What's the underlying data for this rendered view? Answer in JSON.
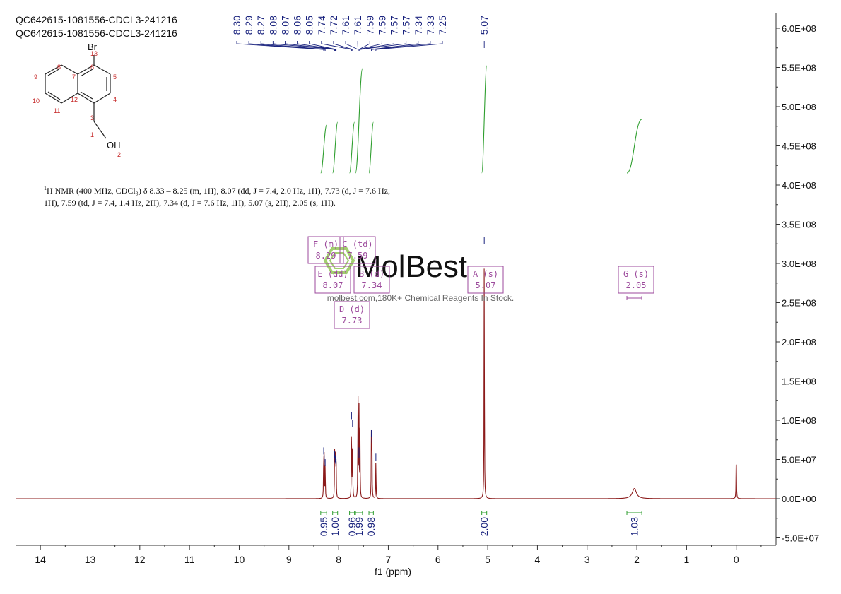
{
  "titles": [
    "QC642615-1081556-CDCL3-241216",
    "QC642615-1081556-CDCL3-241216"
  ],
  "nmr_description": {
    "superscript": "1",
    "line1": "H NMR (400 MHz, CDCl₃) δ 8.33 – 8.25 (m, 1H), 8.07 (dd, J = 7.4, 2.0 Hz, 1H), 7.73 (d, J = 7.6 Hz,",
    "line2": "1H), 7.59 (td, J = 7.4, 1.4 Hz, 2H), 7.34 (d, J = 7.6 Hz, 1H), 5.07 (s, 2H), 2.05 (s, 1H)."
  },
  "watermark": {
    "brand": "MolBest",
    "tagline": "molbest.com,180K+ Chemical Reagents In Stock.",
    "color": "#8bc34a"
  },
  "molecule": {
    "atom_labels": [
      "Br",
      "OH"
    ],
    "numbers": [
      "1",
      "2",
      "3",
      "4",
      "5",
      "6",
      "7",
      "8",
      "9",
      "10",
      "11",
      "12",
      "13"
    ]
  },
  "colors": {
    "spectrum": "#8b1a1a",
    "peak_labels": "#1a237e",
    "integral_curve": "#2e9e2e",
    "integral_label": "#1a237e",
    "multiplet_box": "#9c4a9c",
    "atom_numbers": "#c62828"
  },
  "chart_data": {
    "type": "line",
    "xlabel": "f1 (ppm)",
    "x_ticks": [
      "14",
      "13",
      "12",
      "11",
      "10",
      "9",
      "8",
      "7",
      "6",
      "5",
      "4",
      "3",
      "2",
      "1",
      "0"
    ],
    "x_reversed": true,
    "xlim": [
      14.5,
      -0.8
    ],
    "y_ticks": [
      "6.0E+08",
      "5.5E+08",
      "5.0E+08",
      "4.5E+08",
      "4.0E+08",
      "3.5E+08",
      "3.0E+08",
      "2.5E+08",
      "2.0E+08",
      "1.5E+08",
      "1.0E+08",
      "5.0E+07",
      "0.0E+00",
      "-5.0E+07"
    ],
    "ylim": [
      -60000000.0,
      620000000.0
    ],
    "peaks": [
      {
        "ppm": 8.3,
        "intensity": 60000000.0
      },
      {
        "ppm": 8.29,
        "intensity": 50000000.0
      },
      {
        "ppm": 8.27,
        "intensity": 45000000.0
      },
      {
        "ppm": 8.08,
        "intensity": 55000000.0
      },
      {
        "ppm": 8.07,
        "intensity": 50000000.0
      },
      {
        "ppm": 8.06,
        "intensity": 48000000.0
      },
      {
        "ppm": 8.05,
        "intensity": 45000000.0
      },
      {
        "ppm": 7.74,
        "intensity": 105000000.0
      },
      {
        "ppm": 7.72,
        "intensity": 95000000.0
      },
      {
        "ppm": 7.61,
        "intensity": 75000000.0
      },
      {
        "ppm": 7.61,
        "intensity": 65000000.0
      },
      {
        "ppm": 7.59,
        "intensity": 60000000.0
      },
      {
        "ppm": 7.59,
        "intensity": 55000000.0
      },
      {
        "ppm": 7.57,
        "intensity": 45000000.0
      },
      {
        "ppm": 7.57,
        "intensity": 40000000.0
      },
      {
        "ppm": 7.34,
        "intensity": 82000000.0
      },
      {
        "ppm": 7.33,
        "intensity": 75000000.0
      },
      {
        "ppm": 7.25,
        "intensity": 52000000.0
      },
      {
        "ppm": 5.07,
        "intensity": 328000000.0
      },
      {
        "ppm": 2.05,
        "intensity": 13000000.0,
        "width": 0.05
      },
      {
        "ppm": 0.0,
        "intensity": 70000000.0
      }
    ],
    "peak_labels": [
      "8.30",
      "8.29",
      "8.27",
      "8.08",
      "8.07",
      "8.06",
      "8.05",
      "7.74",
      "7.72",
      "7.61",
      "7.61",
      "7.59",
      "7.59",
      "7.57",
      "7.57",
      "7.34",
      "7.33",
      "7.25",
      "5.07"
    ],
    "peak_label_positions_ppm": [
      8.3,
      8.29,
      8.27,
      8.08,
      8.07,
      8.06,
      8.05,
      7.74,
      7.72,
      7.61,
      7.61,
      7.59,
      7.59,
      7.57,
      7.57,
      7.34,
      7.33,
      7.25,
      5.07
    ],
    "integrals": [
      {
        "start": 8.36,
        "end": 8.24,
        "value": "0.95"
      },
      {
        "start": 8.12,
        "end": 8.02,
        "value": "1.00"
      },
      {
        "start": 7.78,
        "end": 7.68,
        "value": "0.96"
      },
      {
        "start": 7.66,
        "end": 7.52,
        "value": "1.99"
      },
      {
        "start": 7.39,
        "end": 7.3,
        "value": "0.98"
      },
      {
        "start": 5.12,
        "end": 5.02,
        "value": "2.00"
      },
      {
        "start": 2.2,
        "end": 1.9,
        "value": "1.03"
      }
    ],
    "multiplets": [
      {
        "label": "F (m)",
        "shift": "8.29",
        "ppm": 8.29
      },
      {
        "label": "C (td)",
        "shift": "7.59",
        "ppm": 7.59
      },
      {
        "label": "E (dd)",
        "shift": "8.07",
        "ppm": 8.07
      },
      {
        "label": "B (d)",
        "shift": "7.34",
        "ppm": 7.34
      },
      {
        "label": "D (d)",
        "shift": "7.73",
        "ppm": 7.73
      },
      {
        "label": "A (s)",
        "shift": "5.07",
        "ppm": 5.07
      },
      {
        "label": "G (s)",
        "shift": "2.05",
        "ppm": 2.05
      }
    ]
  }
}
